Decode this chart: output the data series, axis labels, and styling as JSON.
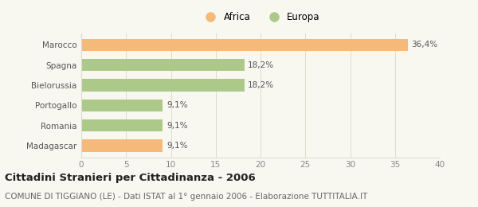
{
  "categories": [
    "Madagascar",
    "Romania",
    "Portogallo",
    "Bielorussia",
    "Spagna",
    "Marocco"
  ],
  "values": [
    9.1,
    9.1,
    9.1,
    18.2,
    18.2,
    36.4
  ],
  "labels": [
    "9,1%",
    "9,1%",
    "9,1%",
    "18,2%",
    "18,2%",
    "36,4%"
  ],
  "colors": [
    "#f5b97a",
    "#adc98a",
    "#adc98a",
    "#adc98a",
    "#adc98a",
    "#f5b97a"
  ],
  "legend_labels": [
    "Africa",
    "Europa"
  ],
  "legend_colors": [
    "#f5b97a",
    "#adc98a"
  ],
  "xlim": [
    0,
    40
  ],
  "xticks": [
    0,
    5,
    10,
    15,
    20,
    25,
    30,
    35,
    40
  ],
  "title": "Cittadini Stranieri per Cittadinanza - 2006",
  "subtitle": "COMUNE DI TIGGIANO (LE) - Dati ISTAT al 1° gennaio 2006 - Elaborazione TUTTITALIA.IT",
  "bg_color": "#f8f8f0",
  "grid_color": "#ddddcc",
  "bar_height": 0.6,
  "title_fontsize": 9.5,
  "subtitle_fontsize": 7.5,
  "label_fontsize": 7.5,
  "tick_fontsize": 7.5,
  "legend_fontsize": 8.5,
  "ylabel_color": "#555555",
  "xlabel_color": "#888888"
}
